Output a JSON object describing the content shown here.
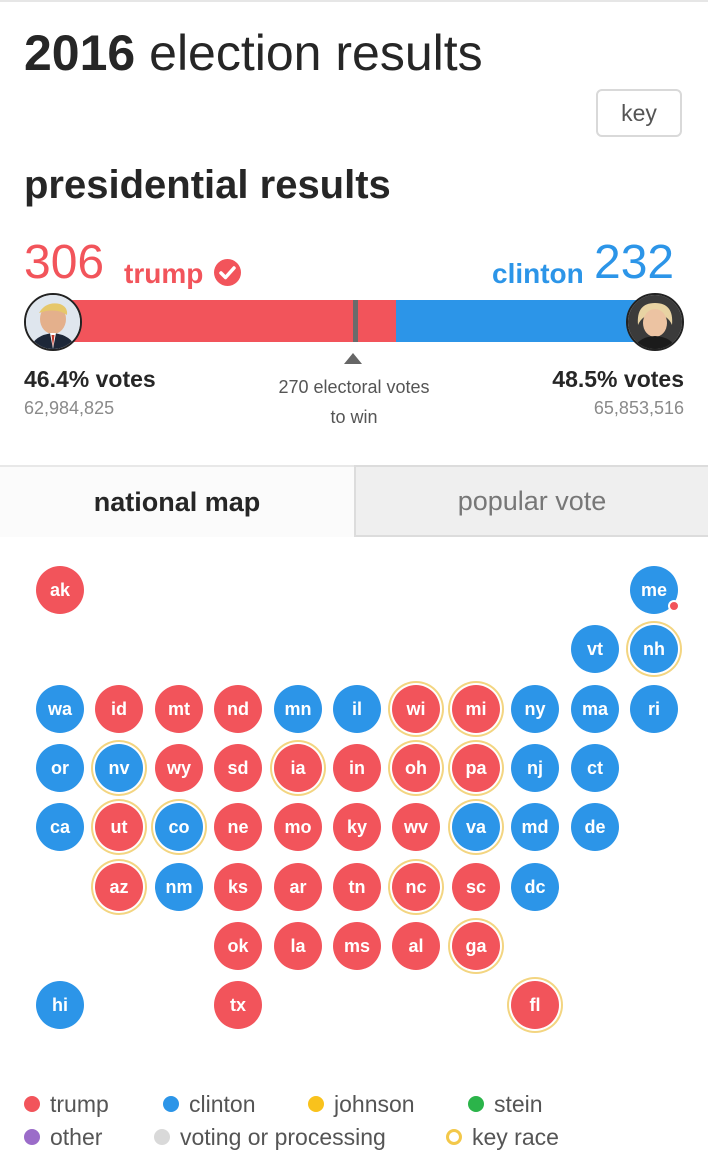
{
  "page": {
    "title_year": "2016",
    "title_rest": "election results",
    "key_label": "key"
  },
  "presidential": {
    "title": "presidential results",
    "trump": {
      "electoral": "306",
      "name": "trump",
      "pct": "46.4% votes",
      "popular": "62,984,825",
      "electoral_value": 306,
      "color": "#f2545b"
    },
    "clinton": {
      "electoral": "232",
      "name": "clinton",
      "pct": "48.5% votes",
      "popular": "65,853,516",
      "electoral_value": 232,
      "color": "#2c95e8"
    },
    "to_win_line1": "270 electoral votes",
    "to_win_line2": "to win",
    "to_win_value": 270,
    "total_electoral": 538
  },
  "tabs": [
    {
      "label": "national map",
      "active": true
    },
    {
      "label": "popular vote",
      "active": false
    }
  ],
  "states": [
    {
      "code": "ak",
      "winner": "trump",
      "key": false
    },
    {
      "code": "me",
      "winner": "clinton",
      "key": false,
      "split": "trump"
    },
    {
      "code": "vt",
      "winner": "clinton",
      "key": false
    },
    {
      "code": "nh",
      "winner": "clinton",
      "key": true
    },
    {
      "code": "wa",
      "winner": "clinton",
      "key": false
    },
    {
      "code": "id",
      "winner": "trump",
      "key": false
    },
    {
      "code": "mt",
      "winner": "trump",
      "key": false
    },
    {
      "code": "nd",
      "winner": "trump",
      "key": false
    },
    {
      "code": "mn",
      "winner": "clinton",
      "key": false
    },
    {
      "code": "il",
      "winner": "clinton",
      "key": false
    },
    {
      "code": "wi",
      "winner": "trump",
      "key": true
    },
    {
      "code": "mi",
      "winner": "trump",
      "key": true
    },
    {
      "code": "ny",
      "winner": "clinton",
      "key": false
    },
    {
      "code": "ma",
      "winner": "clinton",
      "key": false
    },
    {
      "code": "ri",
      "winner": "clinton",
      "key": false
    },
    {
      "code": "or",
      "winner": "clinton",
      "key": false
    },
    {
      "code": "nv",
      "winner": "clinton",
      "key": true
    },
    {
      "code": "wy",
      "winner": "trump",
      "key": false
    },
    {
      "code": "sd",
      "winner": "trump",
      "key": false
    },
    {
      "code": "ia",
      "winner": "trump",
      "key": true
    },
    {
      "code": "in",
      "winner": "trump",
      "key": false
    },
    {
      "code": "oh",
      "winner": "trump",
      "key": true
    },
    {
      "code": "pa",
      "winner": "trump",
      "key": true
    },
    {
      "code": "nj",
      "winner": "clinton",
      "key": false
    },
    {
      "code": "ct",
      "winner": "clinton",
      "key": false
    },
    {
      "code": "ca",
      "winner": "clinton",
      "key": false
    },
    {
      "code": "ut",
      "winner": "trump",
      "key": true
    },
    {
      "code": "co",
      "winner": "clinton",
      "key": true
    },
    {
      "code": "ne",
      "winner": "trump",
      "key": false
    },
    {
      "code": "mo",
      "winner": "trump",
      "key": false
    },
    {
      "code": "ky",
      "winner": "trump",
      "key": false
    },
    {
      "code": "wv",
      "winner": "trump",
      "key": false
    },
    {
      "code": "va",
      "winner": "clinton",
      "key": true
    },
    {
      "code": "md",
      "winner": "clinton",
      "key": false
    },
    {
      "code": "de",
      "winner": "clinton",
      "key": false
    },
    {
      "code": "az",
      "winner": "trump",
      "key": true
    },
    {
      "code": "nm",
      "winner": "clinton",
      "key": false
    },
    {
      "code": "ks",
      "winner": "trump",
      "key": false
    },
    {
      "code": "ar",
      "winner": "trump",
      "key": false
    },
    {
      "code": "tn",
      "winner": "trump",
      "key": false
    },
    {
      "code": "nc",
      "winner": "trump",
      "key": true
    },
    {
      "code": "sc",
      "winner": "trump",
      "key": false
    },
    {
      "code": "dc",
      "winner": "clinton",
      "key": false
    },
    {
      "code": "ok",
      "winner": "trump",
      "key": false
    },
    {
      "code": "la",
      "winner": "trump",
      "key": false
    },
    {
      "code": "ms",
      "winner": "trump",
      "key": false
    },
    {
      "code": "al",
      "winner": "trump",
      "key": false
    },
    {
      "code": "ga",
      "winner": "trump",
      "key": true
    },
    {
      "code": "hi",
      "winner": "clinton",
      "key": false
    },
    {
      "code": "tx",
      "winner": "trump",
      "key": false
    },
    {
      "code": "fl",
      "winner": "trump",
      "key": true
    }
  ],
  "legend": [
    {
      "label": "trump",
      "color": "#f2545b",
      "style": "fill"
    },
    {
      "label": "clinton",
      "color": "#2c95e8",
      "style": "fill"
    },
    {
      "label": "johnson",
      "color": "#f9c21c",
      "style": "fill"
    },
    {
      "label": "stein",
      "color": "#2bb44a",
      "style": "fill"
    },
    {
      "label": "other",
      "color": "#9b6cc9",
      "style": "fill"
    },
    {
      "label": "voting or processing",
      "color": "#d9d9d9",
      "style": "fill"
    },
    {
      "label": "key race",
      "color": "#f3c84a",
      "style": "ring"
    }
  ]
}
